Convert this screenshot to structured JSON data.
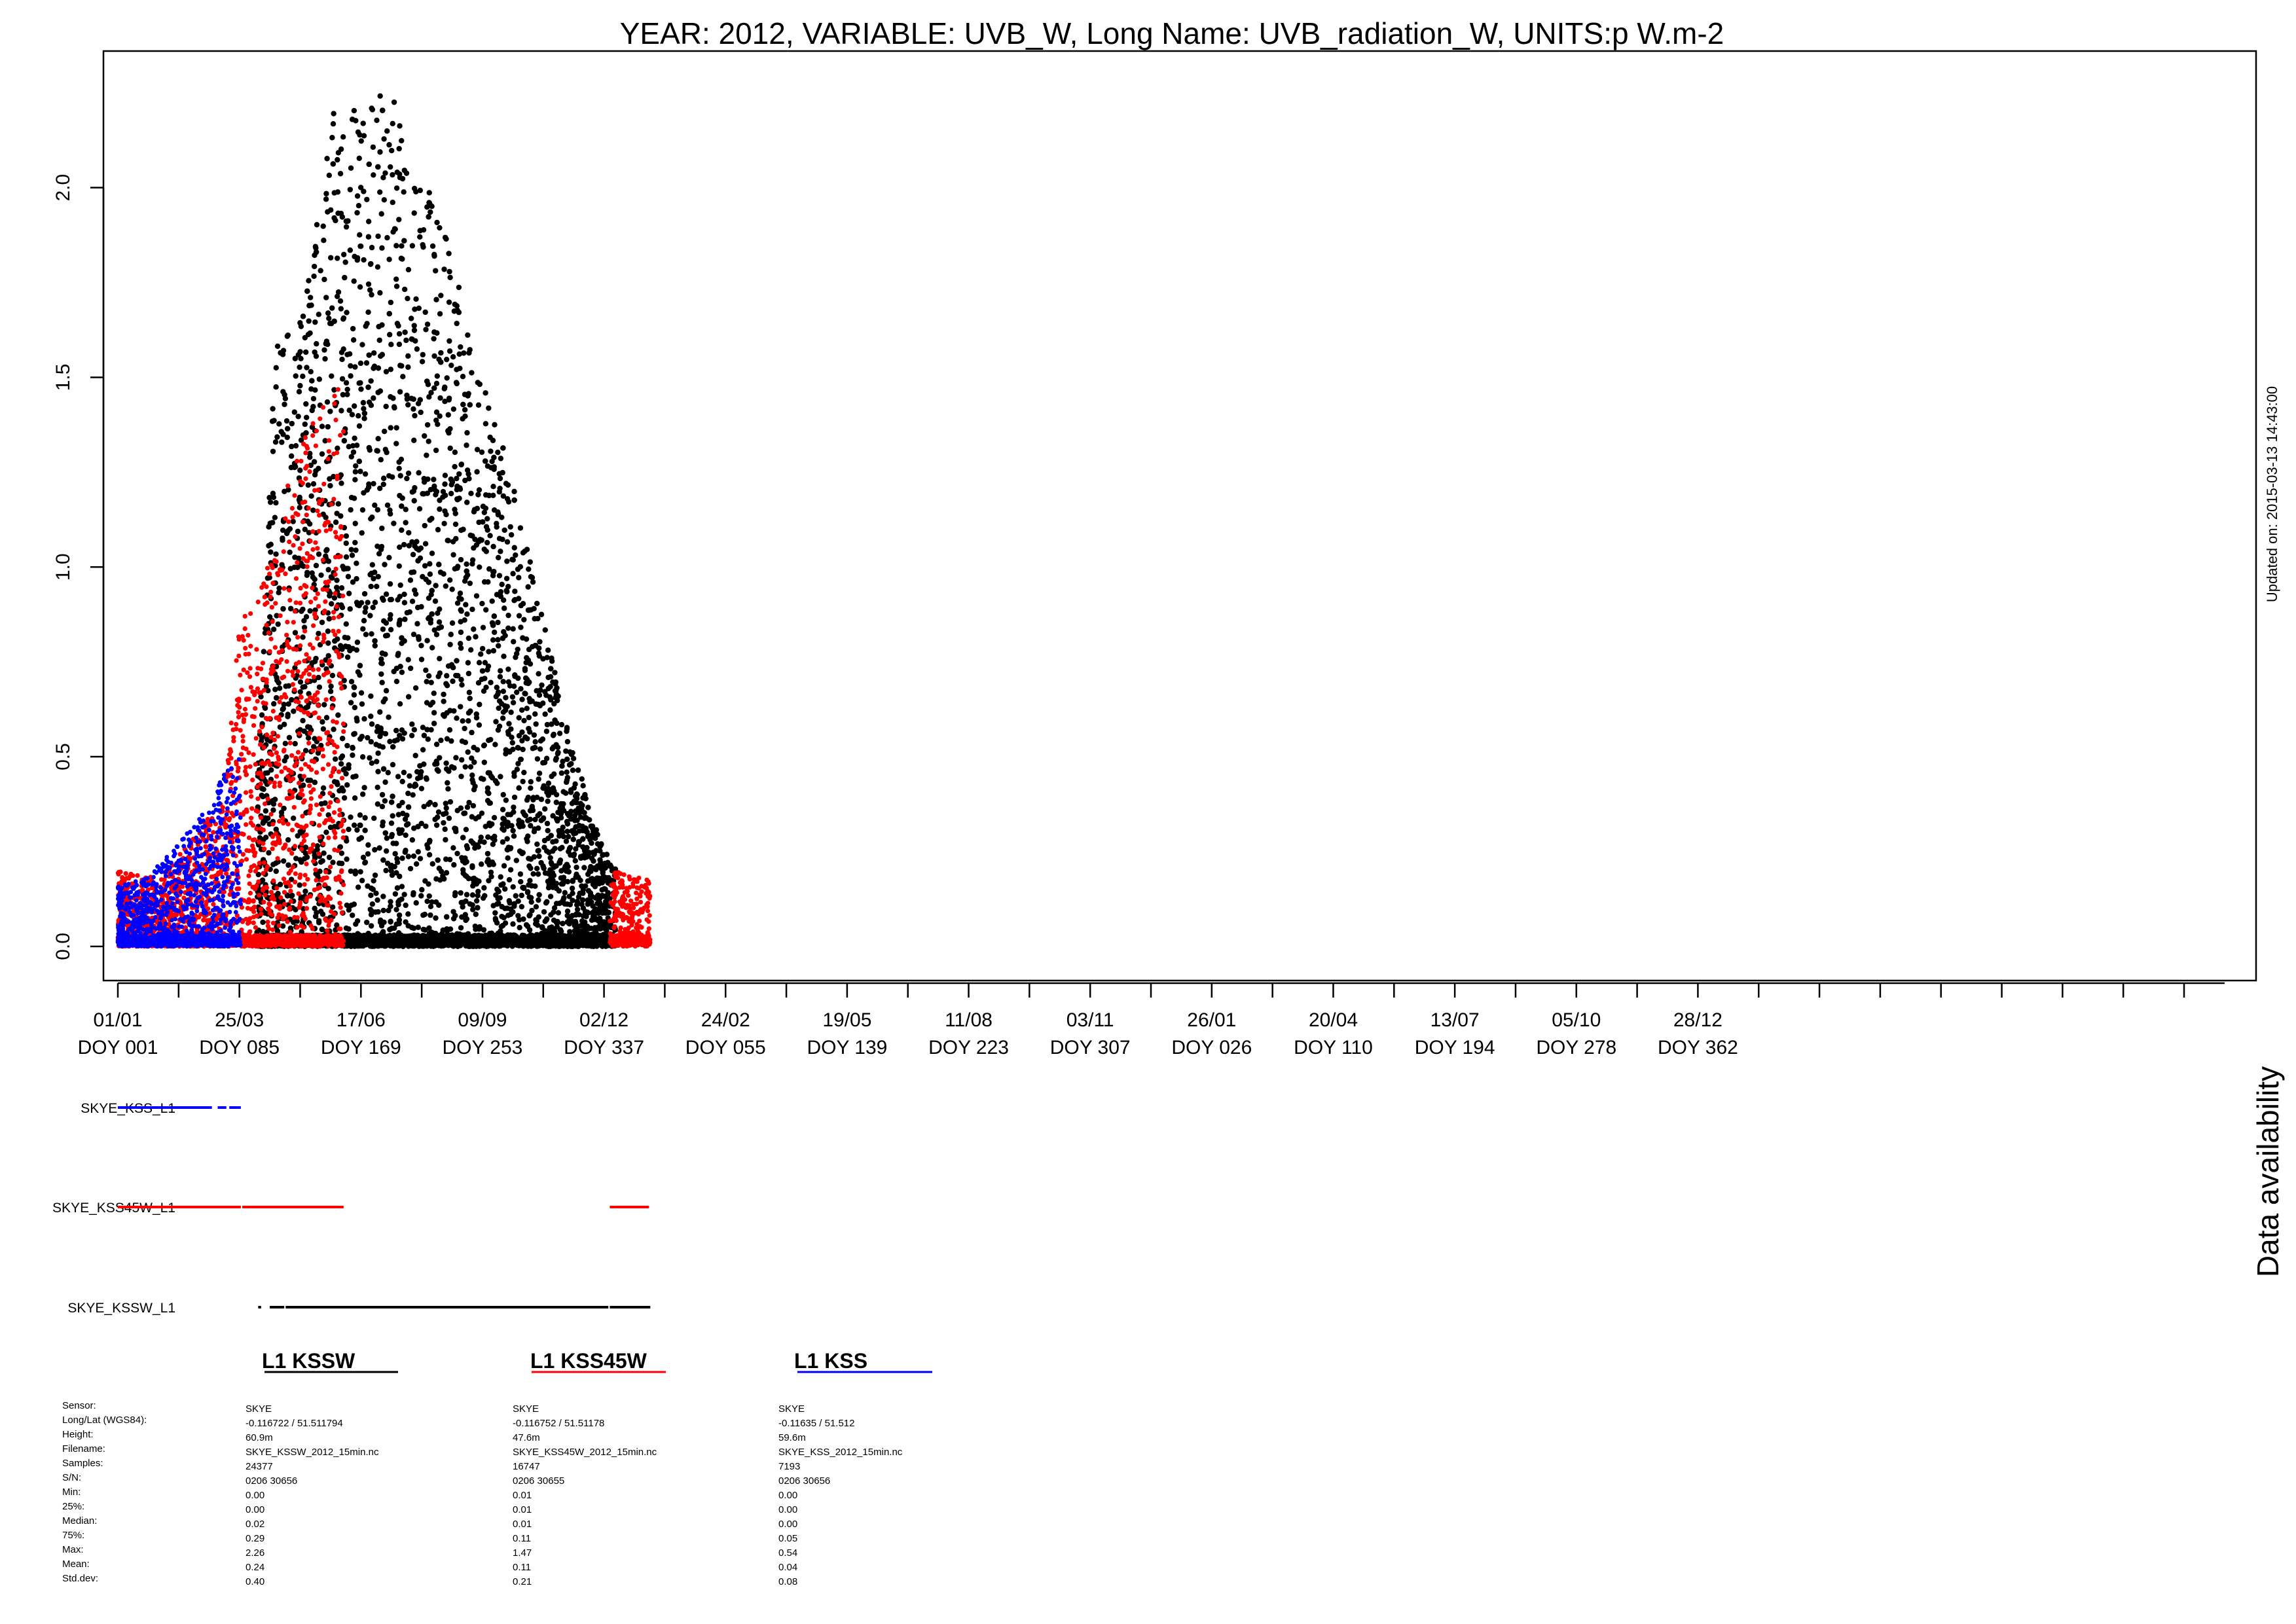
{
  "chart_data": {
    "type": "scatter",
    "title": "YEAR: 2012, VARIABLE: UVB_W, Long Name: UVB_radiation_W, UNITS:p W.m-2",
    "updated": "Updated on: 2015-03-13 14:43:00",
    "ylim": [
      -0.09,
      2.36
    ],
    "y_ticks": [
      "0.0",
      "0.5",
      "1.0",
      "1.5",
      "2.0"
    ],
    "x_range_doy": [
      1,
      1467
    ],
    "x_tick_labels": [
      {
        "date": "01/01",
        "doy": "DOY 001"
      },
      {
        "date": "25/03",
        "doy": "DOY 085"
      },
      {
        "date": "17/06",
        "doy": "DOY 169"
      },
      {
        "date": "09/09",
        "doy": "DOY 253"
      },
      {
        "date": "02/12",
        "doy": "DOY 337"
      },
      {
        "date": "24/02",
        "doy": "DOY 055"
      },
      {
        "date": "19/05",
        "doy": "DOY 139"
      },
      {
        "date": "11/08",
        "doy": "DOY 223"
      },
      {
        "date": "03/11",
        "doy": "DOY 307"
      },
      {
        "date": "26/01",
        "doy": "DOY 026"
      },
      {
        "date": "20/04",
        "doy": "DOY 110"
      },
      {
        "date": "13/07",
        "doy": "DOY 194"
      },
      {
        "date": "05/10",
        "doy": "DOY 278"
      },
      {
        "date": "28/12",
        "doy": "DOY 362"
      }
    ],
    "series": [
      {
        "name": "L1 KSSW",
        "color": "#000000",
        "envelope_doy": [
          97,
          110,
          130,
          150,
          169,
          190,
          210,
          230,
          253,
          270,
          290,
          310,
          325,
          337,
          345
        ],
        "envelope_max": [
          0.4,
          1.6,
          1.7,
          2.2,
          2.22,
          2.26,
          2.05,
          1.85,
          1.5,
          1.3,
          0.95,
          0.6,
          0.4,
          0.25,
          0.22
        ]
      },
      {
        "name": "L1 KSS45W",
        "color": "#ff0000",
        "envelope_doy": [
          1,
          30,
          55,
          75,
          85,
          100,
          120,
          145,
          155
        ],
        "envelope_max": [
          0.2,
          0.18,
          0.3,
          0.4,
          0.85,
          0.95,
          1.25,
          1.47,
          1.47
        ],
        "envelope_doy_2": [
          340,
          370
        ],
        "envelope_max_2": [
          0.2,
          0.18
        ]
      },
      {
        "name": "L1 KSS",
        "color": "#0000ff",
        "envelope_doy": [
          1,
          20,
          45,
          65,
          85
        ],
        "envelope_max": [
          0.16,
          0.18,
          0.28,
          0.38,
          0.54
        ]
      }
    ]
  },
  "availability": {
    "title": "Data availability",
    "rows": [
      {
        "label": "SKYE_KSS_L1",
        "color": "#0000ff",
        "segments_doy": [
          [
            1,
            66
          ],
          [
            70,
            76
          ],
          [
            78,
            86
          ]
        ]
      },
      {
        "label": "SKYE_KSS45W_L1",
        "color": "#ff0000",
        "segments_doy": [
          [
            1,
            86
          ],
          [
            87,
            157
          ],
          [
            341,
            368
          ]
        ]
      },
      {
        "label": "SKYE_KSSW_L1",
        "color": "#000000",
        "segments_doy": [
          [
            98,
            100
          ],
          [
            106,
            116
          ],
          [
            117,
            340
          ],
          [
            341,
            369
          ]
        ]
      }
    ]
  },
  "stats": {
    "row_labels": [
      "Sensor:",
      "Long/Lat (WGS84):",
      "Height:",
      "Filename:",
      "Samples:",
      "S/N:",
      "Min:",
      "25%:",
      "Median:",
      "75%:",
      "Max:",
      "Mean:",
      "Std.dev:"
    ],
    "columns": [
      {
        "header": "L1 KSSW",
        "color": "#000000",
        "values": [
          "SKYE",
          "-0.116722 / 51.511794",
          "60.9m",
          "SKYE_KSSW_2012_15min.nc",
          "24377",
          "0206 30656",
          "0.00",
          "0.00",
          "0.02",
          "0.29",
          "2.26",
          "0.24",
          "0.40"
        ]
      },
      {
        "header": "L1 KSS45W",
        "color": "#ff0000",
        "values": [
          "SKYE",
          "-0.116752 / 51.51178",
          "47.6m",
          "SKYE_KSS45W_2012_15min.nc",
          "16747",
          "0206 30655",
          "0.01",
          "0.01",
          "0.01",
          "0.11",
          "1.47",
          "0.11",
          "0.21"
        ]
      },
      {
        "header": "L1 KSS",
        "color": "#0000ff",
        "values": [
          "SKYE",
          "-0.11635 / 51.512",
          "59.6m",
          "SKYE_KSS_2012_15min.nc",
          "7193",
          "0206 30656",
          "0.00",
          "0.00",
          "0.00",
          "0.05",
          "0.54",
          "0.04",
          "0.08"
        ]
      }
    ]
  }
}
